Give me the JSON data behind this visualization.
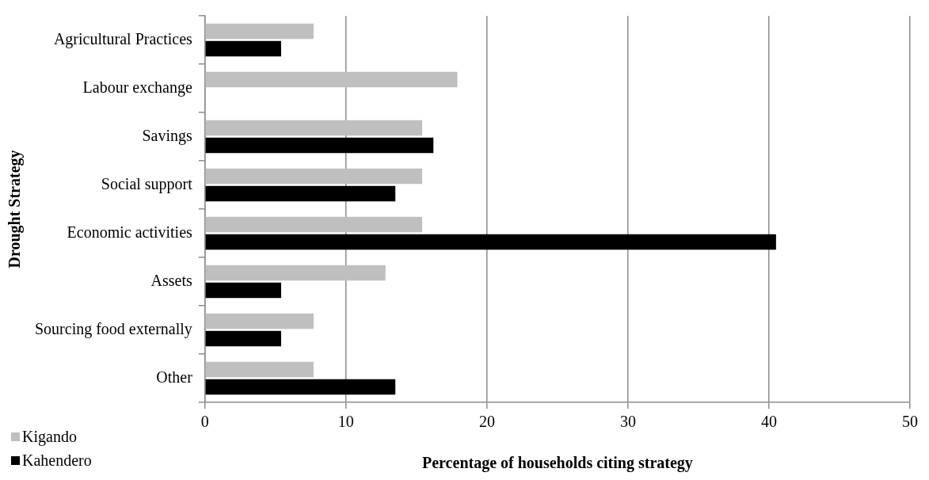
{
  "chart_data": {
    "type": "bar",
    "orientation": "horizontal",
    "xlabel": "Percentage of households citing strategy",
    "ylabel": "Drought Strategy",
    "categories": [
      "Agricultural Practices",
      "Labour exchange",
      "Savings",
      "Social support",
      "Economic activities",
      "Assets",
      "Sourcing food externally",
      "Other"
    ],
    "series": [
      {
        "name": "Kigando",
        "color": "#bfbfbf",
        "values": [
          7.7,
          17.9,
          15.4,
          15.4,
          15.4,
          12.8,
          7.7,
          7.7
        ]
      },
      {
        "name": "Kahendero",
        "color": "#000000",
        "values": [
          5.4,
          null,
          16.2,
          13.5,
          40.5,
          5.4,
          5.4,
          13.5
        ]
      }
    ],
    "xlim": [
      0,
      50
    ],
    "xticks": [
      0,
      10,
      20,
      30,
      40,
      50
    ],
    "grid": "x",
    "legend": "bottom left"
  }
}
